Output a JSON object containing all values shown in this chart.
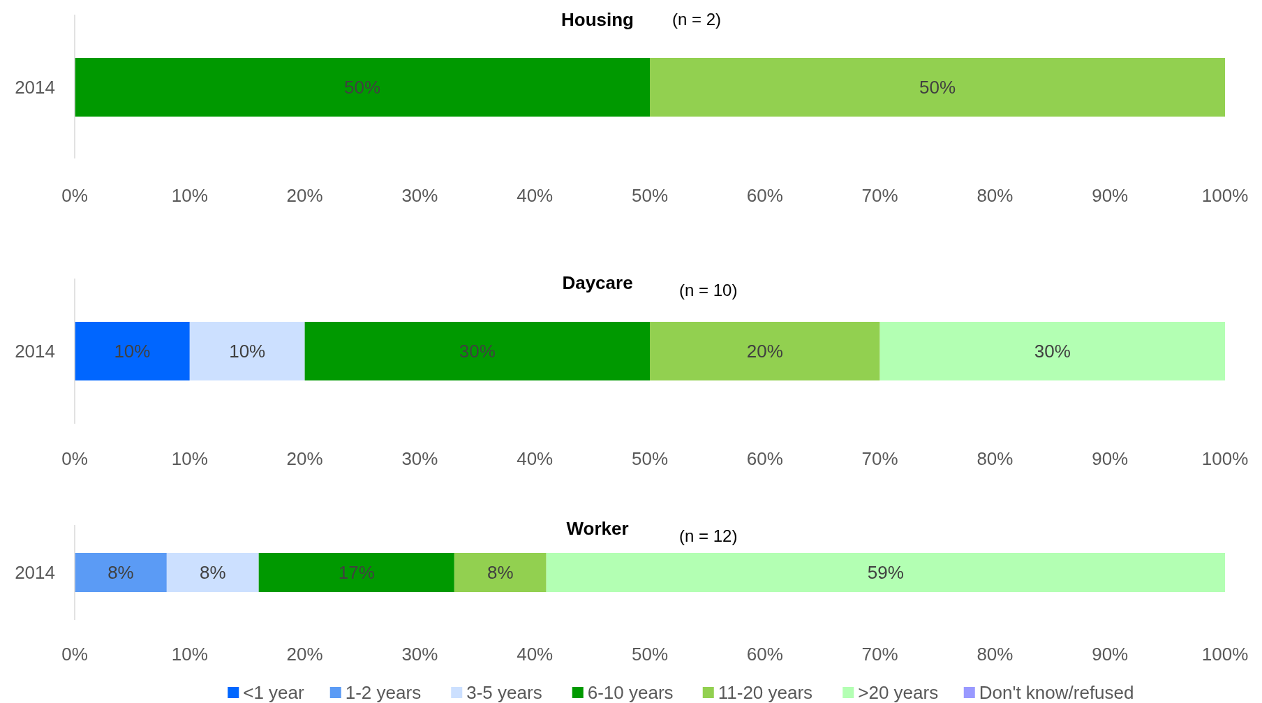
{
  "chart_data": [
    {
      "type": "bar",
      "orientation": "horizontal",
      "stacked": true,
      "title": "Housing",
      "subtitle": "(n = 2)",
      "categories": [
        "2014"
      ],
      "xlim": [
        0,
        100
      ],
      "xticks": [
        {
          "value": 0,
          "label": "0%"
        },
        {
          "value": 10,
          "label": "10%"
        },
        {
          "value": 20,
          "label": "20%"
        },
        {
          "value": 30,
          "label": "30%"
        },
        {
          "value": 40,
          "label": "40%"
        },
        {
          "value": 50,
          "label": "50%"
        },
        {
          "value": 60,
          "label": "60%"
        },
        {
          "value": 70,
          "label": "70%"
        },
        {
          "value": 80,
          "label": "80%"
        },
        {
          "value": 90,
          "label": "90%"
        },
        {
          "value": 100,
          "label": "100%"
        }
      ],
      "grid": false,
      "legend": false,
      "series": [
        {
          "color": "#009900",
          "values": [
            50
          ],
          "value_labels": [
            "50%"
          ]
        },
        {
          "color": "#92d050",
          "values": [
            50
          ],
          "value_labels": [
            "50%"
          ]
        }
      ]
    },
    {
      "type": "bar",
      "orientation": "horizontal",
      "stacked": true,
      "title": "Daycare",
      "subtitle": "(n = 10)",
      "categories": [
        "2014"
      ],
      "xlim": [
        0,
        100
      ],
      "xticks": [
        {
          "value": 0,
          "label": "0%"
        },
        {
          "value": 10,
          "label": "10%"
        },
        {
          "value": 20,
          "label": "20%"
        },
        {
          "value": 30,
          "label": "30%"
        },
        {
          "value": 40,
          "label": "40%"
        },
        {
          "value": 50,
          "label": "50%"
        },
        {
          "value": 60,
          "label": "60%"
        },
        {
          "value": 70,
          "label": "70%"
        },
        {
          "value": 80,
          "label": "80%"
        },
        {
          "value": 90,
          "label": "90%"
        },
        {
          "value": 100,
          "label": "100%"
        }
      ],
      "grid": false,
      "legend": false,
      "series": [
        {
          "color": "#0066ff",
          "values": [
            10
          ],
          "value_labels": [
            "10%"
          ]
        },
        {
          "color": "#cce0ff",
          "values": [
            10
          ],
          "value_labels": [
            "10%"
          ]
        },
        {
          "color": "#009900",
          "values": [
            30
          ],
          "value_labels": [
            "30%"
          ]
        },
        {
          "color": "#92d050",
          "values": [
            20
          ],
          "value_labels": [
            "20%"
          ]
        },
        {
          "color": "#b3ffb3",
          "values": [
            30
          ],
          "value_labels": [
            "30%"
          ]
        }
      ]
    },
    {
      "type": "bar",
      "orientation": "horizontal",
      "stacked": true,
      "title": "Worker",
      "subtitle": "(n = 12)",
      "categories": [
        "2014"
      ],
      "xlim": [
        0,
        100
      ],
      "xticks": [
        {
          "value": 0,
          "label": "0%"
        },
        {
          "value": 10,
          "label": "10%"
        },
        {
          "value": 20,
          "label": "20%"
        },
        {
          "value": 30,
          "label": "30%"
        },
        {
          "value": 40,
          "label": "40%"
        },
        {
          "value": 50,
          "label": "50%"
        },
        {
          "value": 60,
          "label": "60%"
        },
        {
          "value": 70,
          "label": "70%"
        },
        {
          "value": 80,
          "label": "80%"
        },
        {
          "value": 90,
          "label": "90%"
        },
        {
          "value": 100,
          "label": "100%"
        }
      ],
      "grid": false,
      "legend": "bottom",
      "series": [
        {
          "name": "<1 year",
          "color": "#0066ff",
          "values": [
            null
          ]
        },
        {
          "name": "1-2 years",
          "color": "#5b9bf5",
          "values": [
            8
          ],
          "value_labels": [
            "8%"
          ]
        },
        {
          "name": "3-5 years",
          "color": "#cce0ff",
          "values": [
            8
          ],
          "value_labels": [
            "8%"
          ]
        },
        {
          "name": "6-10 years",
          "color": "#009900",
          "values": [
            17
          ],
          "value_labels": [
            "17%"
          ]
        },
        {
          "name": "11-20 years",
          "color": "#92d050",
          "values": [
            8
          ],
          "value_labels": [
            "8%"
          ]
        },
        {
          "name": ">20 years",
          "color": "#b3ffb3",
          "values": [
            59
          ],
          "value_labels": [
            "59%"
          ]
        },
        {
          "name": "Don't know/refused",
          "color": "#9999ff",
          "values": [
            null
          ]
        }
      ]
    }
  ]
}
